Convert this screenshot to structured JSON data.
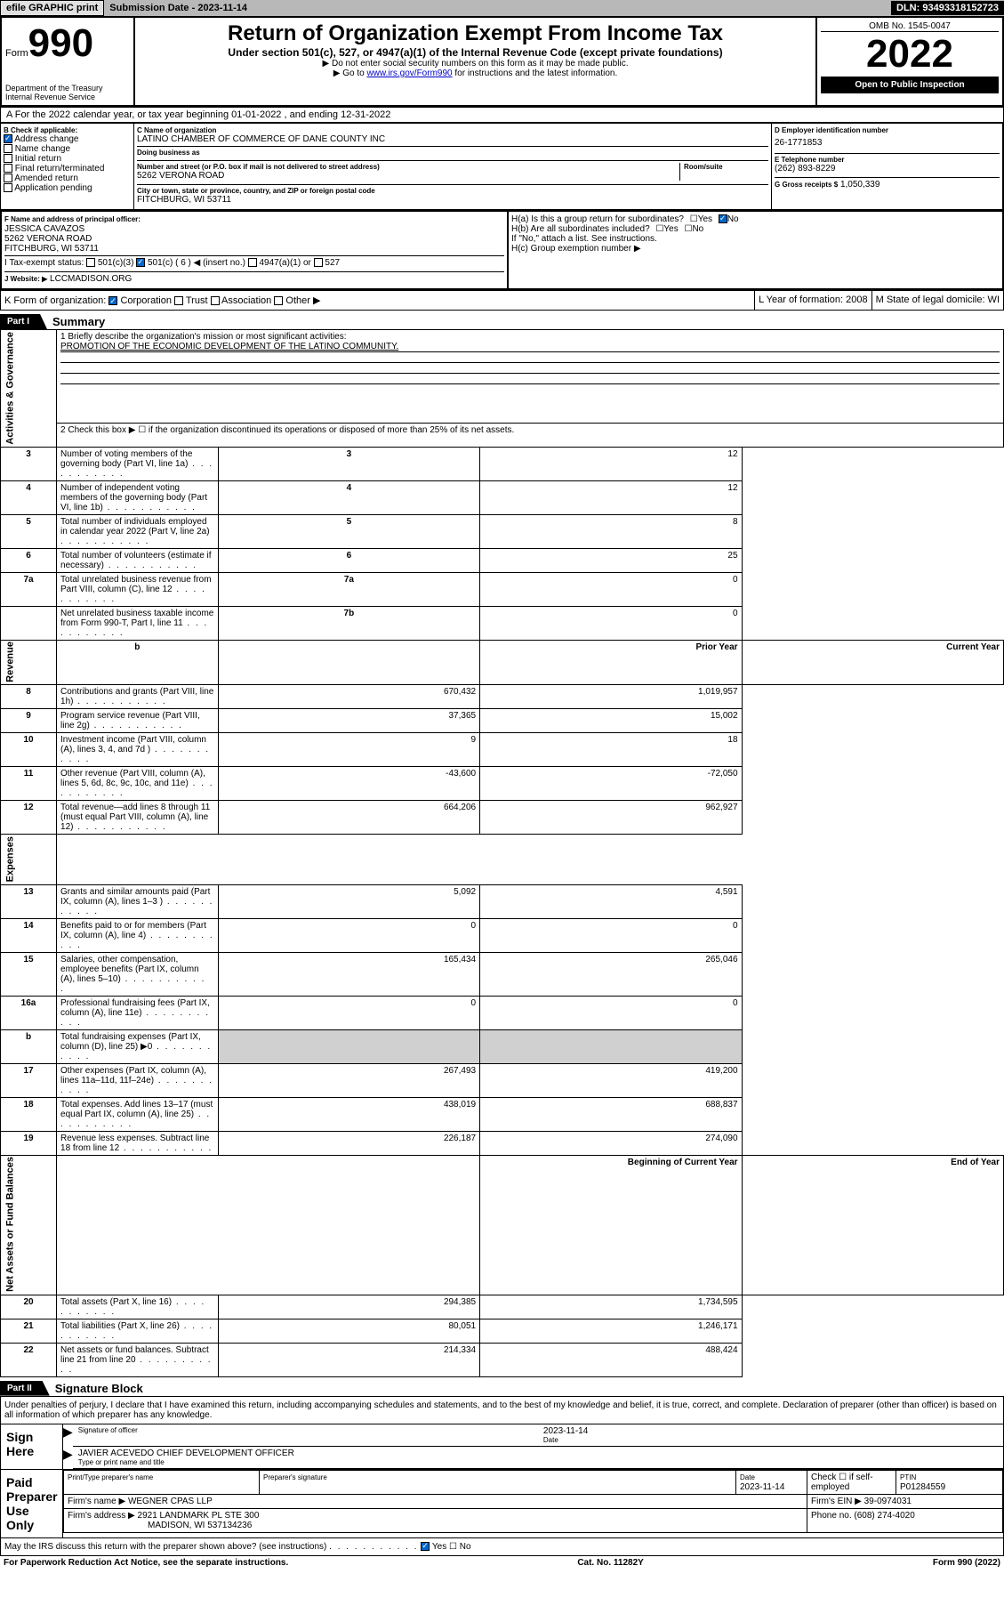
{
  "top": {
    "efile": "efile GRAPHIC print",
    "subdate_lbl": "Submission Date - ",
    "subdate": "2023-11-14",
    "dln": "DLN: 93493318152723"
  },
  "header": {
    "form": "Form",
    "num": "990",
    "dept": "Department of the Treasury Internal Revenue Service",
    "title": "Return of Organization Exempt From Income Tax",
    "subtitle": "Under section 501(c), 527, or 4947(a)(1) of the Internal Revenue Code (except private foundations)",
    "note1": "▶ Do not enter social security numbers on this form as it may be made public.",
    "note2_pre": "▶ Go to ",
    "note2_link": "www.irs.gov/Form990",
    "note2_post": " for instructions and the latest information.",
    "omb": "OMB No. 1545-0047",
    "year": "2022",
    "open": "Open to Public Inspection"
  },
  "rowA": "A For the 2022 calendar year, or tax year beginning 01-01-2022   , and ending 12-31-2022",
  "secB": {
    "lbl": "B Check if applicable:",
    "items": [
      {
        "txt": "Address change",
        "chk": true
      },
      {
        "txt": "Name change",
        "chk": false
      },
      {
        "txt": "Initial return",
        "chk": false
      },
      {
        "txt": "Final return/terminated",
        "chk": false
      },
      {
        "txt": "Amended return",
        "chk": false
      },
      {
        "txt": "Application pending",
        "chk": false
      }
    ]
  },
  "secC": {
    "name_lbl": "C Name of organization",
    "name": "LATINO CHAMBER OF COMMERCE OF DANE COUNTY INC",
    "dba_lbl": "Doing business as",
    "dba": "",
    "addr_lbl": "Number and street (or P.O. box if mail is not delivered to street address)",
    "room_lbl": "Room/suite",
    "addr": "5262 VERONA ROAD",
    "city_lbl": "City or town, state or province, country, and ZIP or foreign postal code",
    "city": "FITCHBURG, WI  53711"
  },
  "secD": {
    "lbl": "D Employer identification number",
    "val": "26-1771853"
  },
  "secE": {
    "lbl": "E Telephone number",
    "val": "(262) 893-8229"
  },
  "secG": {
    "lbl": "G Gross receipts $",
    "val": "1,050,339"
  },
  "secF": {
    "lbl": "F Name and address of principal officer:",
    "name": "JESSICA CAVAZOS",
    "addr1": "5262 VERONA ROAD",
    "addr2": "FITCHBURG, WI  53711"
  },
  "secH": {
    "a": "H(a)  Is this a group return for subordinates?",
    "a_no": true,
    "b": "H(b)  Are all subordinates included?",
    "note": "If \"No,\" attach a list. See instructions.",
    "c": "H(c)  Group exemption number ▶"
  },
  "secI": {
    "lbl": "I   Tax-exempt status:",
    "opts": [
      "501(c)(3)",
      "501(c) ( 6 ) ◀ (insert no.)",
      "4947(a)(1) or",
      "527"
    ],
    "checked_idx": 1
  },
  "secJ": {
    "lbl": "J   Website: ▶",
    "val": "LCCMADISON.ORG"
  },
  "secK": {
    "lbl": "K Form of organization:",
    "opts": [
      "Corporation",
      "Trust",
      "Association",
      "Other ▶"
    ],
    "checked": 0,
    "L": "L Year of formation: 2008",
    "M": "M State of legal domicile: WI"
  },
  "part1": {
    "tab": "Part I",
    "title": "Summary",
    "q1_lbl": "1  Briefly describe the organization's mission or most significant activities:",
    "q1_val": "PROMOTION OF THE ECONOMIC DEVELOPMENT OF THE LATINO COMMUNITY.",
    "q2": "2   Check this box ▶ ☐  if the organization discontinued its operations or disposed of more than 25% of its net assets.",
    "gov_rows": [
      {
        "n": "3",
        "t": "Number of voting members of the governing body (Part VI, line 1a)",
        "box": "3",
        "v": "12"
      },
      {
        "n": "4",
        "t": "Number of independent voting members of the governing body (Part VI, line 1b)",
        "box": "4",
        "v": "12"
      },
      {
        "n": "5",
        "t": "Total number of individuals employed in calendar year 2022 (Part V, line 2a)",
        "box": "5",
        "v": "8"
      },
      {
        "n": "6",
        "t": "Total number of volunteers (estimate if necessary)",
        "box": "6",
        "v": "25"
      },
      {
        "n": "7a",
        "t": "Total unrelated business revenue from Part VIII, column (C), line 12",
        "box": "7a",
        "v": "0"
      },
      {
        "n": "",
        "t": "Net unrelated business taxable income from Form 990-T, Part I, line 11",
        "box": "7b",
        "v": "0"
      }
    ],
    "col_hdrs": {
      "b": "b",
      "py": "Prior Year",
      "cy": "Current Year"
    },
    "rev_rows": [
      {
        "n": "8",
        "t": "Contributions and grants (Part VIII, line 1h)",
        "py": "670,432",
        "cy": "1,019,957"
      },
      {
        "n": "9",
        "t": "Program service revenue (Part VIII, line 2g)",
        "py": "37,365",
        "cy": "15,002"
      },
      {
        "n": "10",
        "t": "Investment income (Part VIII, column (A), lines 3, 4, and 7d )",
        "py": "9",
        "cy": "18"
      },
      {
        "n": "11",
        "t": "Other revenue (Part VIII, column (A), lines 5, 6d, 8c, 9c, 10c, and 11e)",
        "py": "-43,600",
        "cy": "-72,050"
      },
      {
        "n": "12",
        "t": "Total revenue—add lines 8 through 11 (must equal Part VIII, column (A), line 12)",
        "py": "664,206",
        "cy": "962,927"
      }
    ],
    "exp_rows": [
      {
        "n": "13",
        "t": "Grants and similar amounts paid (Part IX, column (A), lines 1–3 )",
        "py": "5,092",
        "cy": "4,591"
      },
      {
        "n": "14",
        "t": "Benefits paid to or for members (Part IX, column (A), line 4)",
        "py": "0",
        "cy": "0"
      },
      {
        "n": "15",
        "t": "Salaries, other compensation, employee benefits (Part IX, column (A), lines 5–10)",
        "py": "165,434",
        "cy": "265,046"
      },
      {
        "n": "16a",
        "t": "Professional fundraising fees (Part IX, column (A), line 11e)",
        "py": "0",
        "cy": "0"
      },
      {
        "n": "b",
        "t": "Total fundraising expenses (Part IX, column (D), line 25) ▶0",
        "py": "",
        "cy": "",
        "gray": true
      },
      {
        "n": "17",
        "t": "Other expenses (Part IX, column (A), lines 11a–11d, 11f–24e)",
        "py": "267,493",
        "cy": "419,200"
      },
      {
        "n": "18",
        "t": "Total expenses. Add lines 13–17 (must equal Part IX, column (A), line 25)",
        "py": "438,019",
        "cy": "688,837"
      },
      {
        "n": "19",
        "t": "Revenue less expenses. Subtract line 18 from line 12",
        "py": "226,187",
        "cy": "274,090"
      }
    ],
    "na_hdrs": {
      "b": "Beginning of Current Year",
      "e": "End of Year"
    },
    "na_rows": [
      {
        "n": "20",
        "t": "Total assets (Part X, line 16)",
        "py": "294,385",
        "cy": "1,734,595"
      },
      {
        "n": "21",
        "t": "Total liabilities (Part X, line 26)",
        "py": "80,051",
        "cy": "1,246,171"
      },
      {
        "n": "22",
        "t": "Net assets or fund balances. Subtract line 21 from line 20",
        "py": "214,334",
        "cy": "488,424"
      }
    ],
    "side_labels": {
      "gov": "Activities & Governance",
      "rev": "Revenue",
      "exp": "Expenses",
      "na": "Net Assets or Fund Balances"
    }
  },
  "part2": {
    "tab": "Part II",
    "title": "Signature Block",
    "decl": "Under penalties of perjury, I declare that I have examined this return, including accompanying schedules and statements, and to the best of my knowledge and belief, it is true, correct, and complete. Declaration of preparer (other than officer) is based on all information of which preparer has any knowledge.",
    "sign_here": "Sign Here",
    "sig_of": "Signature of officer",
    "sig_date": "2023-11-14",
    "date_lbl": "Date",
    "officer": "JAVIER ACEVEDO  CHIEF DEVELOPMENT OFFICER",
    "officer_lbl": "Type or print name and title",
    "paid": "Paid Preparer Use Only",
    "prep_name_lbl": "Print/Type preparer's name",
    "prep_sig_lbl": "Preparer's signature",
    "prep_date": "2023-11-14",
    "check_lbl": "Check ☐ if self-employed",
    "ptin_lbl": "PTIN",
    "ptin": "P01284559",
    "firm_name_lbl": "Firm's name    ▶",
    "firm_name": "WEGNER CPAS LLP",
    "firm_ein_lbl": "Firm's EIN ▶",
    "firm_ein": "39-0974031",
    "firm_addr_lbl": "Firm's address ▶",
    "firm_addr1": "2921 LANDMARK PL STE 300",
    "firm_addr2": "MADISON, WI  537134236",
    "phone_lbl": "Phone no.",
    "phone": "(608) 274-4020",
    "may_irs": "May the IRS discuss this return with the preparer shown above? (see instructions)",
    "may_yes": true
  },
  "footer": {
    "l": "For Paperwork Reduction Act Notice, see the separate instructions.",
    "c": "Cat. No. 11282Y",
    "r": "Form 990 (2022)"
  }
}
